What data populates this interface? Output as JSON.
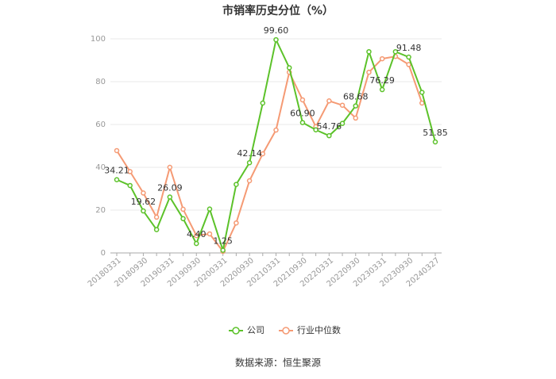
{
  "chart_data": {
    "type": "line",
    "title": "市销率历史分位（%）",
    "categories": [
      "20180331",
      null,
      "20180930",
      null,
      "20190331",
      null,
      "20190930",
      null,
      "20200331",
      null,
      "20200930",
      null,
      "20210331",
      null,
      "20210930",
      null,
      "20220331",
      null,
      "20220930",
      null,
      "20230331",
      null,
      "20230930",
      null,
      "20240327"
    ],
    "series": [
      {
        "name": "公司",
        "color": "#5cc22a",
        "values": [
          34.21,
          31.5,
          19.62,
          10.9,
          26.09,
          16,
          4.4,
          20.5,
          1.25,
          32,
          42.14,
          70,
          99.6,
          86.5,
          60.9,
          57.5,
          54.76,
          60.5,
          68.68,
          94,
          76.29,
          94,
          91.48,
          75,
          51.85
        ],
        "value_labels": [
          "34.21",
          null,
          "19.62",
          null,
          "26.09",
          null,
          "4.40",
          null,
          "1.25",
          null,
          "42.14",
          null,
          "99.60",
          null,
          "60.90",
          null,
          "54.76",
          null,
          "68.68",
          null,
          "76.29",
          null,
          "91.48",
          null,
          "51.85"
        ]
      },
      {
        "name": "行业中位数",
        "color": "#f59a74",
        "values": [
          47.8,
          38,
          28,
          16.7,
          40,
          20.4,
          8.1,
          8.9,
          0.7,
          14,
          33.7,
          46.3,
          57.4,
          84.4,
          71.5,
          59,
          71,
          69,
          63,
          84.4,
          90.7,
          91.8,
          88,
          70,
          null
        ]
      }
    ],
    "ylim": [
      0,
      100
    ],
    "yticks": [
      0,
      20,
      40,
      60,
      80,
      100
    ],
    "grid": true,
    "source": "数据来源：恒生聚源"
  }
}
